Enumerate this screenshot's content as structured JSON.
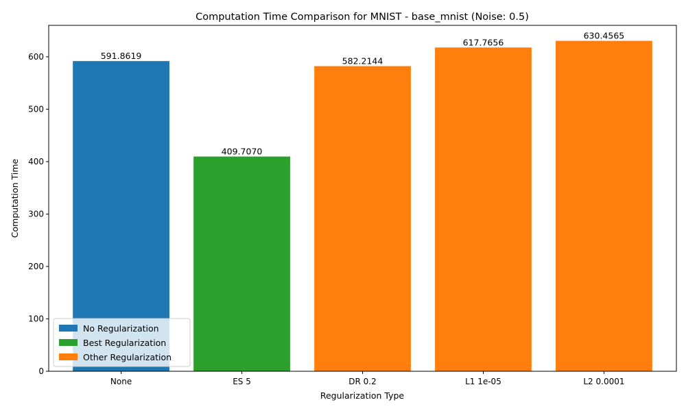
{
  "chart_data": {
    "type": "bar",
    "title": "Computation Time Comparison for MNIST - base_mnist (Noise: 0.5)",
    "xlabel": "Regularization Type",
    "ylabel": "Computation Time",
    "ylim": [
      0,
      660
    ],
    "yticks": [
      0,
      100,
      200,
      300,
      400,
      500,
      600
    ],
    "categories": [
      "None",
      "ES 5",
      "DR 0.2",
      "L1 1e-05",
      "L2 0.0001"
    ],
    "values": [
      591.8619,
      409.707,
      582.2144,
      617.7656,
      630.4565
    ],
    "data_labels": [
      "591.8619",
      "409.7070",
      "582.2144",
      "617.7656",
      "630.4565"
    ],
    "bar_groups": [
      "No Regularization",
      "Best Regularization",
      "Other Regularization",
      "Other Regularization",
      "Other Regularization"
    ],
    "legend": {
      "placement": "lower-left",
      "entries": [
        {
          "label": "No Regularization",
          "color": "#1f77b4"
        },
        {
          "label": "Best Regularization",
          "color": "#2ca02c"
        },
        {
          "label": "Other Regularization",
          "color": "#ff7f0e"
        }
      ]
    },
    "grid": false
  }
}
